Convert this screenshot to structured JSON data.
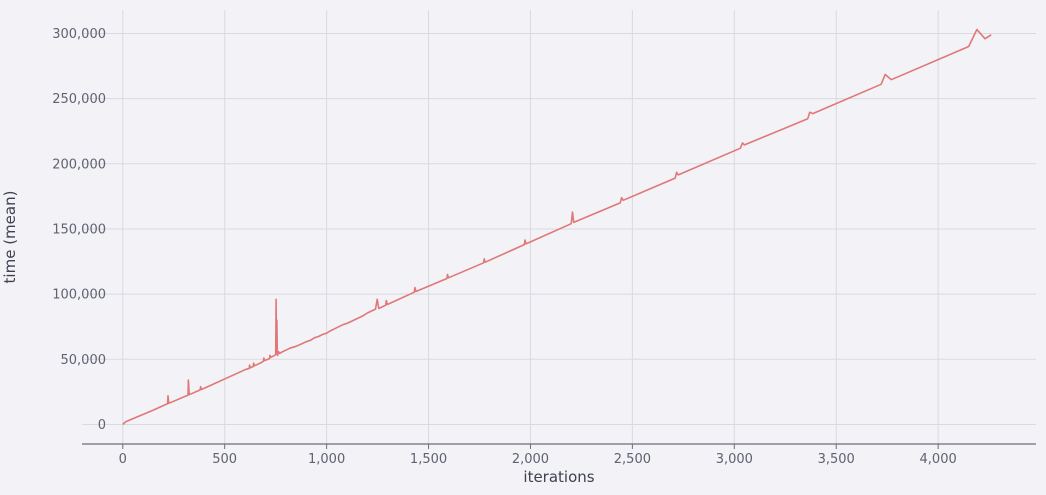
{
  "chart_data": {
    "type": "line",
    "title": "",
    "xlabel": "iterations",
    "ylabel": "time (mean)",
    "xlim": [
      -200,
      4480
    ],
    "ylim": [
      -15000,
      318000
    ],
    "grid": true,
    "x_ticks": [
      0,
      500,
      1000,
      1500,
      2000,
      2500,
      3000,
      3500,
      4000
    ],
    "x_tick_labels": [
      "0",
      "500",
      "1,000",
      "1,500",
      "2,000",
      "2,500",
      "3,000",
      "3,500",
      "4,000"
    ],
    "y_ticks": [
      0,
      50000,
      100000,
      150000,
      200000,
      250000,
      300000
    ],
    "y_tick_labels": [
      "0",
      "50,000",
      "100,000",
      "150,000",
      "200,000",
      "250,000",
      "300,000"
    ],
    "series": [
      {
        "color": "#e07878",
        "x": [
          0,
          10,
          20,
          150,
          220,
          222,
          226,
          320,
          322,
          326,
          380,
          382,
          386,
          600,
          620,
          622,
          626,
          640,
          642,
          646,
          680,
          690,
          692,
          696,
          720,
          722,
          726,
          740,
          750,
          752,
          754,
          756,
          758,
          760,
          764,
          770,
          780,
          800,
          820,
          850,
          880,
          900,
          920,
          940,
          960,
          980,
          1000,
          1020,
          1040,
          1060,
          1080,
          1100,
          1120,
          1140,
          1160,
          1180,
          1200,
          1240,
          1248,
          1256,
          1290,
          1293,
          1298,
          1430,
          1433,
          1438,
          1590,
          1593,
          1598,
          1770,
          1773,
          1778,
          1970,
          1973,
          1978,
          2200,
          2206,
          2212,
          2440,
          2447,
          2455,
          2710,
          2717,
          2725,
          3030,
          3040,
          3050,
          3360,
          3370,
          3385,
          3720,
          3740,
          3770,
          4150,
          4190,
          4230,
          4260
        ],
        "y": [
          0,
          1500,
          2500,
          11000,
          16000,
          22000,
          16200,
          22500,
          34000,
          22800,
          26500,
          29000,
          26800,
          42000,
          43000,
          45500,
          43500,
          44500,
          47000,
          45000,
          47500,
          48500,
          51000,
          49000,
          50500,
          53000,
          51500,
          52500,
          53500,
          96000,
          54000,
          80000,
          55000,
          53000,
          56000,
          54500,
          55500,
          57000,
          58500,
          60000,
          62000,
          63500,
          64500,
          66500,
          67500,
          69000,
          70000,
          72000,
          73500,
          75000,
          76500,
          77500,
          79000,
          80500,
          82000,
          83500,
          85500,
          88500,
          96000,
          89000,
          91500,
          95000,
          92000,
          101500,
          105000,
          102000,
          112000,
          115000,
          112500,
          124000,
          127000,
          124500,
          138000,
          141500,
          138500,
          154000,
          163000,
          155000,
          170000,
          174000,
          172000,
          189000,
          193500,
          191500,
          212000,
          216000,
          214500,
          234500,
          239500,
          238500,
          261000,
          268500,
          264500,
          290000,
          303000,
          296000,
          299000
        ]
      }
    ]
  }
}
